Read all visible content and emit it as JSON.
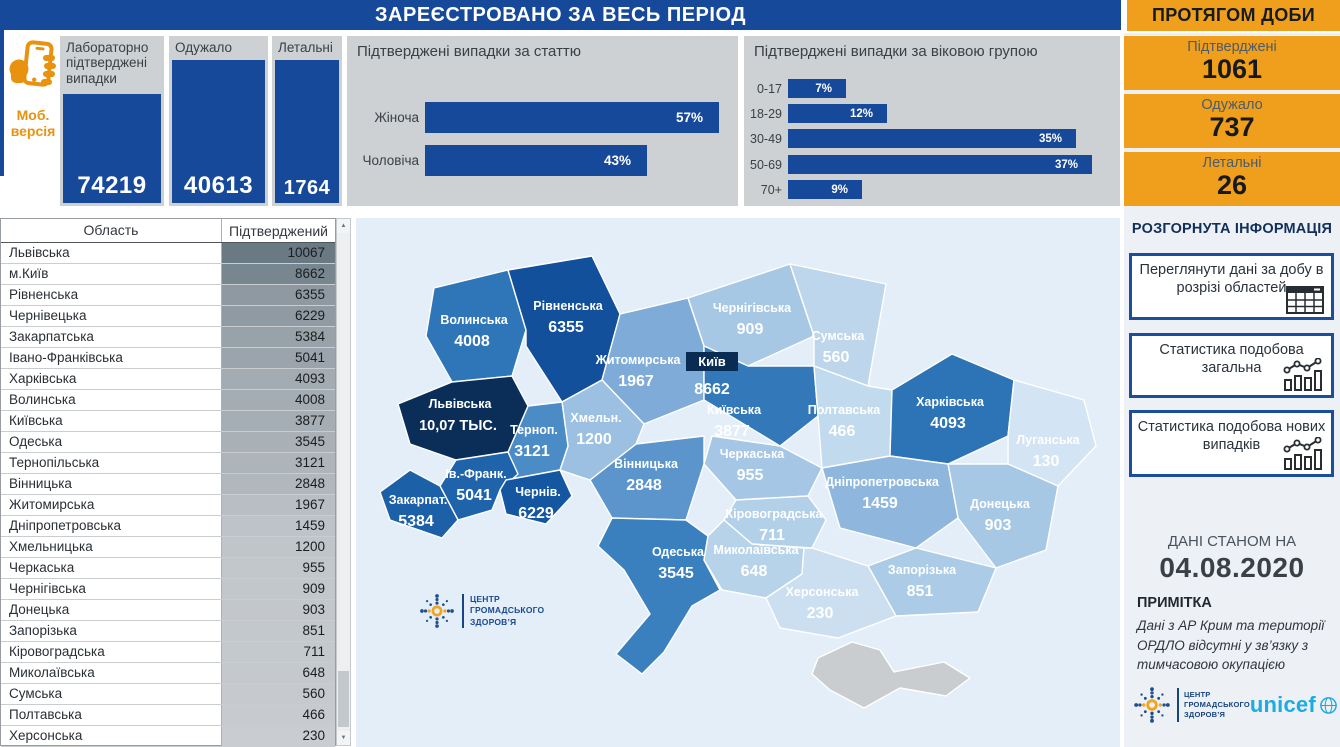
{
  "header": {
    "title": "ЗАРЕЄСТРОВАНО ЗА ВЕСЬ ПЕРІОД",
    "daily_title": "ПРОТЯГОМ ДОБИ"
  },
  "mobile": {
    "label": "Моб. версія"
  },
  "totals": [
    {
      "label": "Лабораторно підтверджені випадки",
      "value": "74219"
    },
    {
      "label": "Одужало",
      "value": "40613"
    },
    {
      "label": "Летальні",
      "value": "1764"
    }
  ],
  "chart_data": [
    {
      "type": "bar",
      "orientation": "horizontal",
      "title": "Підтверджені випадки за статтю",
      "categories": [
        "Жіноча",
        "Чоловіча"
      ],
      "values": [
        57,
        43
      ],
      "unit": "%",
      "bar_color": "#17499B",
      "xlim": [
        0,
        60
      ],
      "grid": false
    },
    {
      "type": "bar",
      "orientation": "horizontal",
      "title": "Підтверджені випадки за віковою групою",
      "categories": [
        "0-17",
        "18-29",
        "30-49",
        "50-69",
        "70+"
      ],
      "values": [
        7,
        12,
        35,
        37,
        9
      ],
      "unit": "%",
      "bar_color": "#17499B",
      "xlim": [
        0,
        40
      ],
      "grid": false
    },
    {
      "type": "heatmap",
      "subtype": "choropleth-map",
      "title": "Підтверджені випадки за областями (карта України)",
      "regions": [
        "Львівська",
        "м.Київ",
        "Рівненська",
        "Чернівецька",
        "Закарпатська",
        "Івано-Франківська",
        "Харківська",
        "Волинська",
        "Київська",
        "Одеська",
        "Тернопільська",
        "Вінницька",
        "Житомирська",
        "Дніпропетровська",
        "Хмельницька",
        "Черкаська",
        "Чернігівська",
        "Донецька",
        "Запорізька",
        "Кіровоградська",
        "Миколаївська",
        "Сумська",
        "Полтавська",
        "Херсонська",
        "Луганська"
      ],
      "values": [
        10067,
        8662,
        6355,
        6229,
        5384,
        5041,
        4093,
        4008,
        3877,
        3545,
        3121,
        2848,
        1967,
        1459,
        1200,
        955,
        909,
        903,
        851,
        711,
        648,
        560,
        466,
        230,
        130
      ]
    }
  ],
  "daily": [
    {
      "label": "Підтверджені",
      "value": "1061"
    },
    {
      "label": "Одужало",
      "value": "737"
    },
    {
      "label": "Летальні",
      "value": "26"
    }
  ],
  "details": {
    "heading": "РОЗГОРНУТА ІНФОРМАЦІЯ",
    "buttons": [
      {
        "label": "Переглянути дані за добу в розрізі областей",
        "icon": "table-icon"
      },
      {
        "label": "Статистика подобова загальна",
        "icon": "combo-chart-icon"
      },
      {
        "label": "Статистика подобова нових випадків",
        "icon": "combo-chart-icon"
      }
    ]
  },
  "as_of": {
    "label": "ДАНІ СТАНОМ НА",
    "date": "04.08.2020"
  },
  "note": {
    "heading": "ПРИМІТКА",
    "text": "Дані з АР Крим та території ОРДЛО відсутні у зв’язку з тимчасовою окупацією"
  },
  "logos": {
    "phc": [
      "ЦЕНТР",
      "ГРОМАДСЬКОГО",
      "ЗДОРОВ’Я"
    ],
    "unicef": "unicef"
  },
  "table": {
    "columns": [
      "Область",
      "Підтверджений"
    ],
    "rows": [
      [
        "Львівська",
        10067
      ],
      [
        "м.Київ",
        8662
      ],
      [
        "Рівненська",
        6355
      ],
      [
        "Чернівецька",
        6229
      ],
      [
        "Закарпатська",
        5384
      ],
      [
        "Івано-Франківська",
        5041
      ],
      [
        "Харківська",
        4093
      ],
      [
        "Волинська",
        4008
      ],
      [
        "Київська",
        3877
      ],
      [
        "Одеська",
        3545
      ],
      [
        "Тернопільська",
        3121
      ],
      [
        "Вінницька",
        2848
      ],
      [
        "Житомирська",
        1967
      ],
      [
        "Дніпропетровська",
        1459
      ],
      [
        "Хмельницька",
        1200
      ],
      [
        "Черкаська",
        955
      ],
      [
        "Чернігівська",
        909
      ],
      [
        "Донецька",
        903
      ],
      [
        "Запорізька",
        851
      ],
      [
        "Кіровоградська",
        711
      ],
      [
        "Миколаївська",
        648
      ],
      [
        "Сумська",
        560
      ],
      [
        "Полтавська",
        466
      ],
      [
        "Херсонська",
        230
      ]
    ]
  },
  "map": {
    "kyiv_city": {
      "name": "Київ",
      "value": "8662"
    },
    "regions": [
      {
        "name": "Волинська",
        "value": "4008",
        "fill": "#2F76B8"
      },
      {
        "name": "Рівненська",
        "value": "6355",
        "fill": "#12509B"
      },
      {
        "name": "Житомирська",
        "value": "1967",
        "fill": "#7FABD8"
      },
      {
        "name": "Чернігівська",
        "value": "909",
        "fill": "#A7C8E5"
      },
      {
        "name": "Сумська",
        "value": "560",
        "fill": "#BDD6EC"
      },
      {
        "name": "Київська",
        "value": "3877",
        "fill": "#3379BA"
      },
      {
        "name": "Полтавська",
        "value": "466",
        "fill": "#C2DAEE"
      },
      {
        "name": "Харківська",
        "value": "4093",
        "fill": "#2D74B7"
      },
      {
        "name": "Луганська",
        "value": "130",
        "fill": "#D3E4F4"
      },
      {
        "name": "Донецька",
        "value": "903",
        "fill": "#A7C8E5"
      },
      {
        "name": "Дніпропетровська",
        "value": "1459",
        "fill": "#8FB7DE"
      },
      {
        "name": "Запорізька",
        "value": "851",
        "fill": "#ABCBE6"
      },
      {
        "name": "Черкаська",
        "value": "955",
        "fill": "#A5C6E4"
      },
      {
        "name": "Кіровоградська",
        "value": "711",
        "fill": "#B3D0E9"
      },
      {
        "name": "Вінницька",
        "value": "2848",
        "fill": "#5B95CB"
      },
      {
        "name": "Хмельн.",
        "value": "1200",
        "fill": "#9BC0E2"
      },
      {
        "name": "Терноп.",
        "value": "3121",
        "fill": "#4C8CC6"
      },
      {
        "name": "Львівська",
        "value": "10,07 тыс.",
        "fill": "#0B2E59"
      },
      {
        "name": "Ів.-Франк.",
        "value": "5041",
        "fill": "#1F64AB"
      },
      {
        "name": "Закарпат.",
        "value": "5384",
        "fill": "#1C60A8"
      },
      {
        "name": "Чернів.",
        "value": "6229",
        "fill": "#1456A0"
      },
      {
        "name": "Одеська",
        "value": "3545",
        "fill": "#3A80BF"
      },
      {
        "name": "Миколаївська",
        "value": "648",
        "fill": "#B7D3EA"
      },
      {
        "name": "Херсонська",
        "value": "230",
        "fill": "#CBDFF1"
      },
      {
        "name": "",
        "value": "",
        "fill": "#C9CDD0"
      }
    ]
  }
}
